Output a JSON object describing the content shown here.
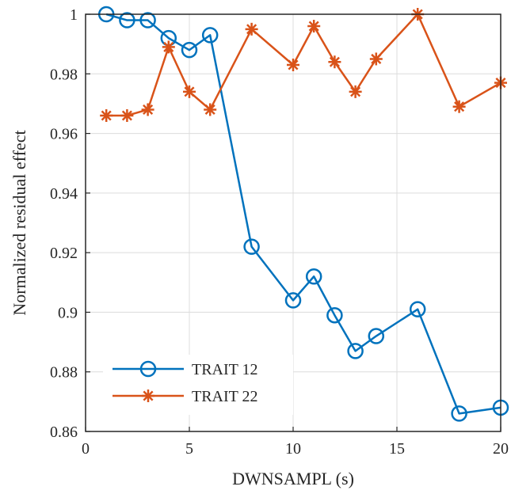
{
  "chart_data": {
    "type": "line",
    "title": "",
    "xlabel": "DWNSAMPL (s)",
    "ylabel": "Normalized residual effect",
    "xlim": [
      0,
      20
    ],
    "ylim": [
      0.86,
      1
    ],
    "xticks": [
      "0",
      "5",
      "10",
      "15",
      "20"
    ],
    "yticks": [
      "0.86",
      "0.88",
      "0.9",
      "0.92",
      "0.94",
      "0.96",
      "0.98",
      "1"
    ],
    "grid": true,
    "legend_position": "bottom-left",
    "series": [
      {
        "name": "TRAIT 12",
        "color": "#0072BD",
        "marker": "circle",
        "x": [
          1,
          2,
          3,
          4,
          5,
          6,
          8,
          10,
          11,
          12,
          13,
          14,
          16,
          18,
          20
        ],
        "y": [
          1.0,
          0.998,
          0.998,
          0.992,
          0.988,
          0.993,
          0.922,
          0.904,
          0.912,
          0.899,
          0.887,
          0.892,
          0.901,
          0.866,
          0.868
        ]
      },
      {
        "name": "TRAIT 22",
        "color": "#D95319",
        "marker": "asterisk",
        "x": [
          1,
          2,
          3,
          4,
          5,
          6,
          8,
          10,
          11,
          12,
          13,
          14,
          16,
          18,
          20
        ],
        "y": [
          0.966,
          0.966,
          0.968,
          0.989,
          0.974,
          0.968,
          0.995,
          0.983,
          0.996,
          0.984,
          0.974,
          0.985,
          1.0,
          0.969,
          0.977
        ]
      }
    ]
  }
}
